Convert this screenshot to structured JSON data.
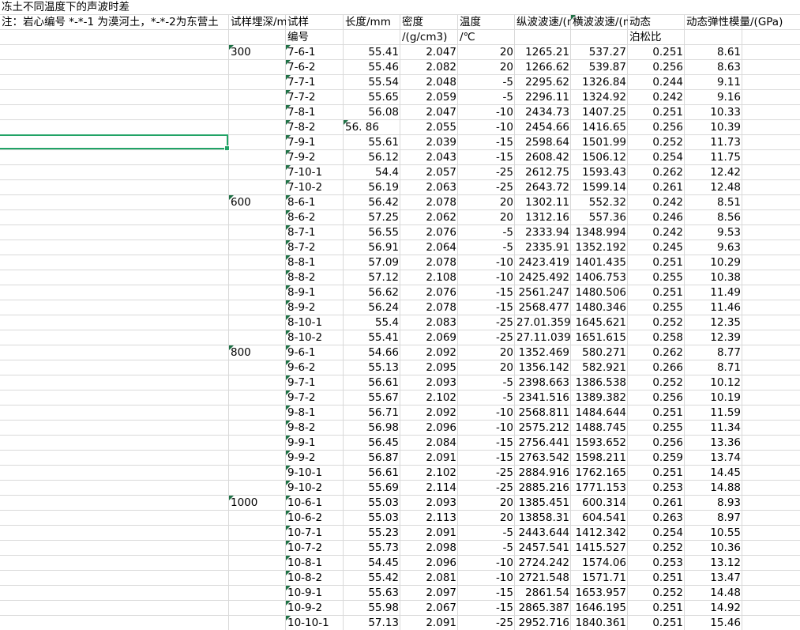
{
  "title": "冻土不同温度下的声波时差",
  "note": "注：岩心编号 *-*-1 为漠河土，*-*-2为东营土",
  "header_top": {
    "depth": "试样埋深/m",
    "id": "试样",
    "length": "长度/mm",
    "density": "密度",
    "temperature": "温度",
    "vp": "纵波波速/(m/s)",
    "vs": "横波波速/(m/s)",
    "poisson": "动态",
    "modulus": "动态弹性模量/(GPa)"
  },
  "header_bottom": {
    "id": "编号",
    "density": "/(g/cm3)",
    "temperature": "/℃",
    "poisson": "泊松比"
  },
  "groups": [
    {
      "depth": "300",
      "rows": [
        [
          "7-6-1",
          "55.41",
          "2.047",
          "20",
          "1265.21",
          "537.27",
          "0.251",
          "8.61"
        ],
        [
          "7-6-2",
          "55.46",
          "2.082",
          "20",
          "1266.62",
          "539.87",
          "0.256",
          "8.63"
        ],
        [
          "7-7-1",
          "55.54",
          "2.048",
          "-5",
          "2295.62",
          "1326.84",
          "0.244",
          "9.11"
        ],
        [
          "7-7-2",
          "55.65",
          "2.059",
          "-5",
          "2296.11",
          "1324.92",
          "0.242",
          "9.16"
        ],
        [
          "7-8-1",
          "56.08",
          "2.047",
          "-10",
          "2434.73",
          "1407.25",
          "0.251",
          "10.33"
        ],
        [
          "7-8-2",
          "56. 86",
          "2.055",
          "-10",
          "2454.66",
          "1416.65",
          "0.256",
          "10.39"
        ],
        [
          "7-9-1",
          "55.61",
          "2.039",
          "-15",
          "2598.64",
          "1501.99",
          "0.252",
          "11.73"
        ],
        [
          "7-9-2",
          "56.12",
          "2.043",
          "-15",
          "2608.42",
          "1506.12",
          "0.254",
          "11.75"
        ],
        [
          "7-10-1",
          "54.4",
          "2.057",
          "-25",
          "2612.75",
          "1593.43",
          "0.262",
          "12.42"
        ],
        [
          "7-10-2",
          "56.19",
          "2.063",
          "-25",
          "2643.72",
          "1599.14",
          "0.261",
          "12.48"
        ]
      ]
    },
    {
      "depth": "600",
      "rows": [
        [
          "8-6-1",
          "56.42",
          "2.078",
          "20",
          "1302.11",
          "552.32",
          "0.242",
          "8.51"
        ],
        [
          "8-6-2",
          "57.25",
          "2.062",
          "20",
          "1312.16",
          "557.36",
          "0.246",
          "8.56"
        ],
        [
          "8-7-1",
          "56.55",
          "2.076",
          "-5",
          "2333.94",
          "1348.994",
          "0.242",
          "9.53"
        ],
        [
          "8-7-2",
          "56.91",
          "2.064",
          "-5",
          "2335.91",
          "1352.192",
          "0.245",
          "9.63"
        ],
        [
          "8-8-1",
          "57.09",
          "2.078",
          "-10",
          "2423.419",
          "1401.435",
          "0.251",
          "10.29"
        ],
        [
          "8-8-2",
          "57.12",
          "2.108",
          "-10",
          "2425.492",
          "1406.753",
          "0.255",
          "10.38"
        ],
        [
          "8-9-1",
          "56.62",
          "2.076",
          "-15",
          "2561.247",
          "1480.506",
          "0.251",
          "11.49"
        ],
        [
          "8-9-2",
          "56.24",
          "2.078",
          "-15",
          "2568.477",
          "1480.346",
          "0.255",
          "11.46"
        ],
        [
          "8-10-1",
          "55.4",
          "2.083",
          "-25",
          "27.01.359",
          "1645.621",
          "0.252",
          "12.35"
        ],
        [
          "8-10-2",
          "55.41",
          "2.069",
          "-25",
          "27.11.039",
          "1651.615",
          "0.258",
          "12.39"
        ]
      ]
    },
    {
      "depth": "800",
      "rows": [
        [
          "9-6-1",
          "54.66",
          "2.092",
          "20",
          "1352.469",
          "580.271",
          "0.262",
          "8.77"
        ],
        [
          "9-6-2",
          "55.13",
          "2.095",
          "20",
          "1356.142",
          "582.921",
          "0.266",
          "8.71"
        ],
        [
          "9-7-1",
          "56.61",
          "2.093",
          "-5",
          "2398.663",
          "1386.538",
          "0.252",
          "10.12"
        ],
        [
          "9-7-2",
          "55.67",
          "2.102",
          "-5",
          "2341.516",
          "1389.382",
          "0.256",
          "10.19"
        ],
        [
          "9-8-1",
          "56.71",
          "2.092",
          "-10",
          "2568.811",
          "1484.644",
          "0.251",
          "11.59"
        ],
        [
          "9-8-2",
          "56.98",
          "2.096",
          "-10",
          "2575.212",
          "1488.745",
          "0.255",
          "11.34"
        ],
        [
          "9-9-1",
          "56.45",
          "2.084",
          "-15",
          "2756.441",
          "1593.652",
          "0.256",
          "13.36"
        ],
        [
          "9-9-2",
          "56.87",
          "2.091",
          "-15",
          "2763.542",
          "1598.211",
          "0.259",
          "13.74"
        ],
        [
          "9-10-1",
          "56.61",
          "2.102",
          "-25",
          "2884.916",
          "1762.165",
          "0.251",
          "14.45"
        ],
        [
          "9-10-2",
          "55.69",
          "2.114",
          "-25",
          "2885.216",
          "1771.153",
          "0.253",
          "14.88"
        ]
      ]
    },
    {
      "depth": "1000",
      "rows": [
        [
          "10-6-1",
          "55.03",
          "2.093",
          "20",
          "1385.451",
          "600.314",
          "0.261",
          "8.93"
        ],
        [
          "10-6-2",
          "55.03",
          "2.113",
          "20",
          "13858.31",
          "604.541",
          "0.263",
          "8.97"
        ],
        [
          "10-7-1",
          "55.23",
          "2.091",
          "-5",
          "2443.644",
          "1412.342",
          "0.254",
          "10.55"
        ],
        [
          "10-7-2",
          "55.73",
          "2.098",
          "-5",
          "2457.541",
          "1415.527",
          "0.252",
          "10.36"
        ],
        [
          "10-8-1",
          "54.45",
          "2.096",
          "-10",
          "2724.242",
          "1574.06",
          "0.253",
          "13.12"
        ],
        [
          "10-8-2",
          "55.42",
          "2.081",
          "-10",
          "2721.548",
          "1571.71",
          "0.251",
          "13.47"
        ],
        [
          "10-9-1",
          "55.63",
          "2.097",
          "-15",
          "2861.54",
          "1653.957",
          "0.252",
          "14.48"
        ],
        [
          "10-9-2",
          "55.98",
          "2.067",
          "-15",
          "2865.387",
          "1646.195",
          "0.251",
          "14.92"
        ],
        [
          "10-10-1",
          "57.13",
          "2.091",
          "-25",
          "2952.716",
          "1840.361",
          "0.251",
          "15.46"
        ]
      ]
    }
  ]
}
